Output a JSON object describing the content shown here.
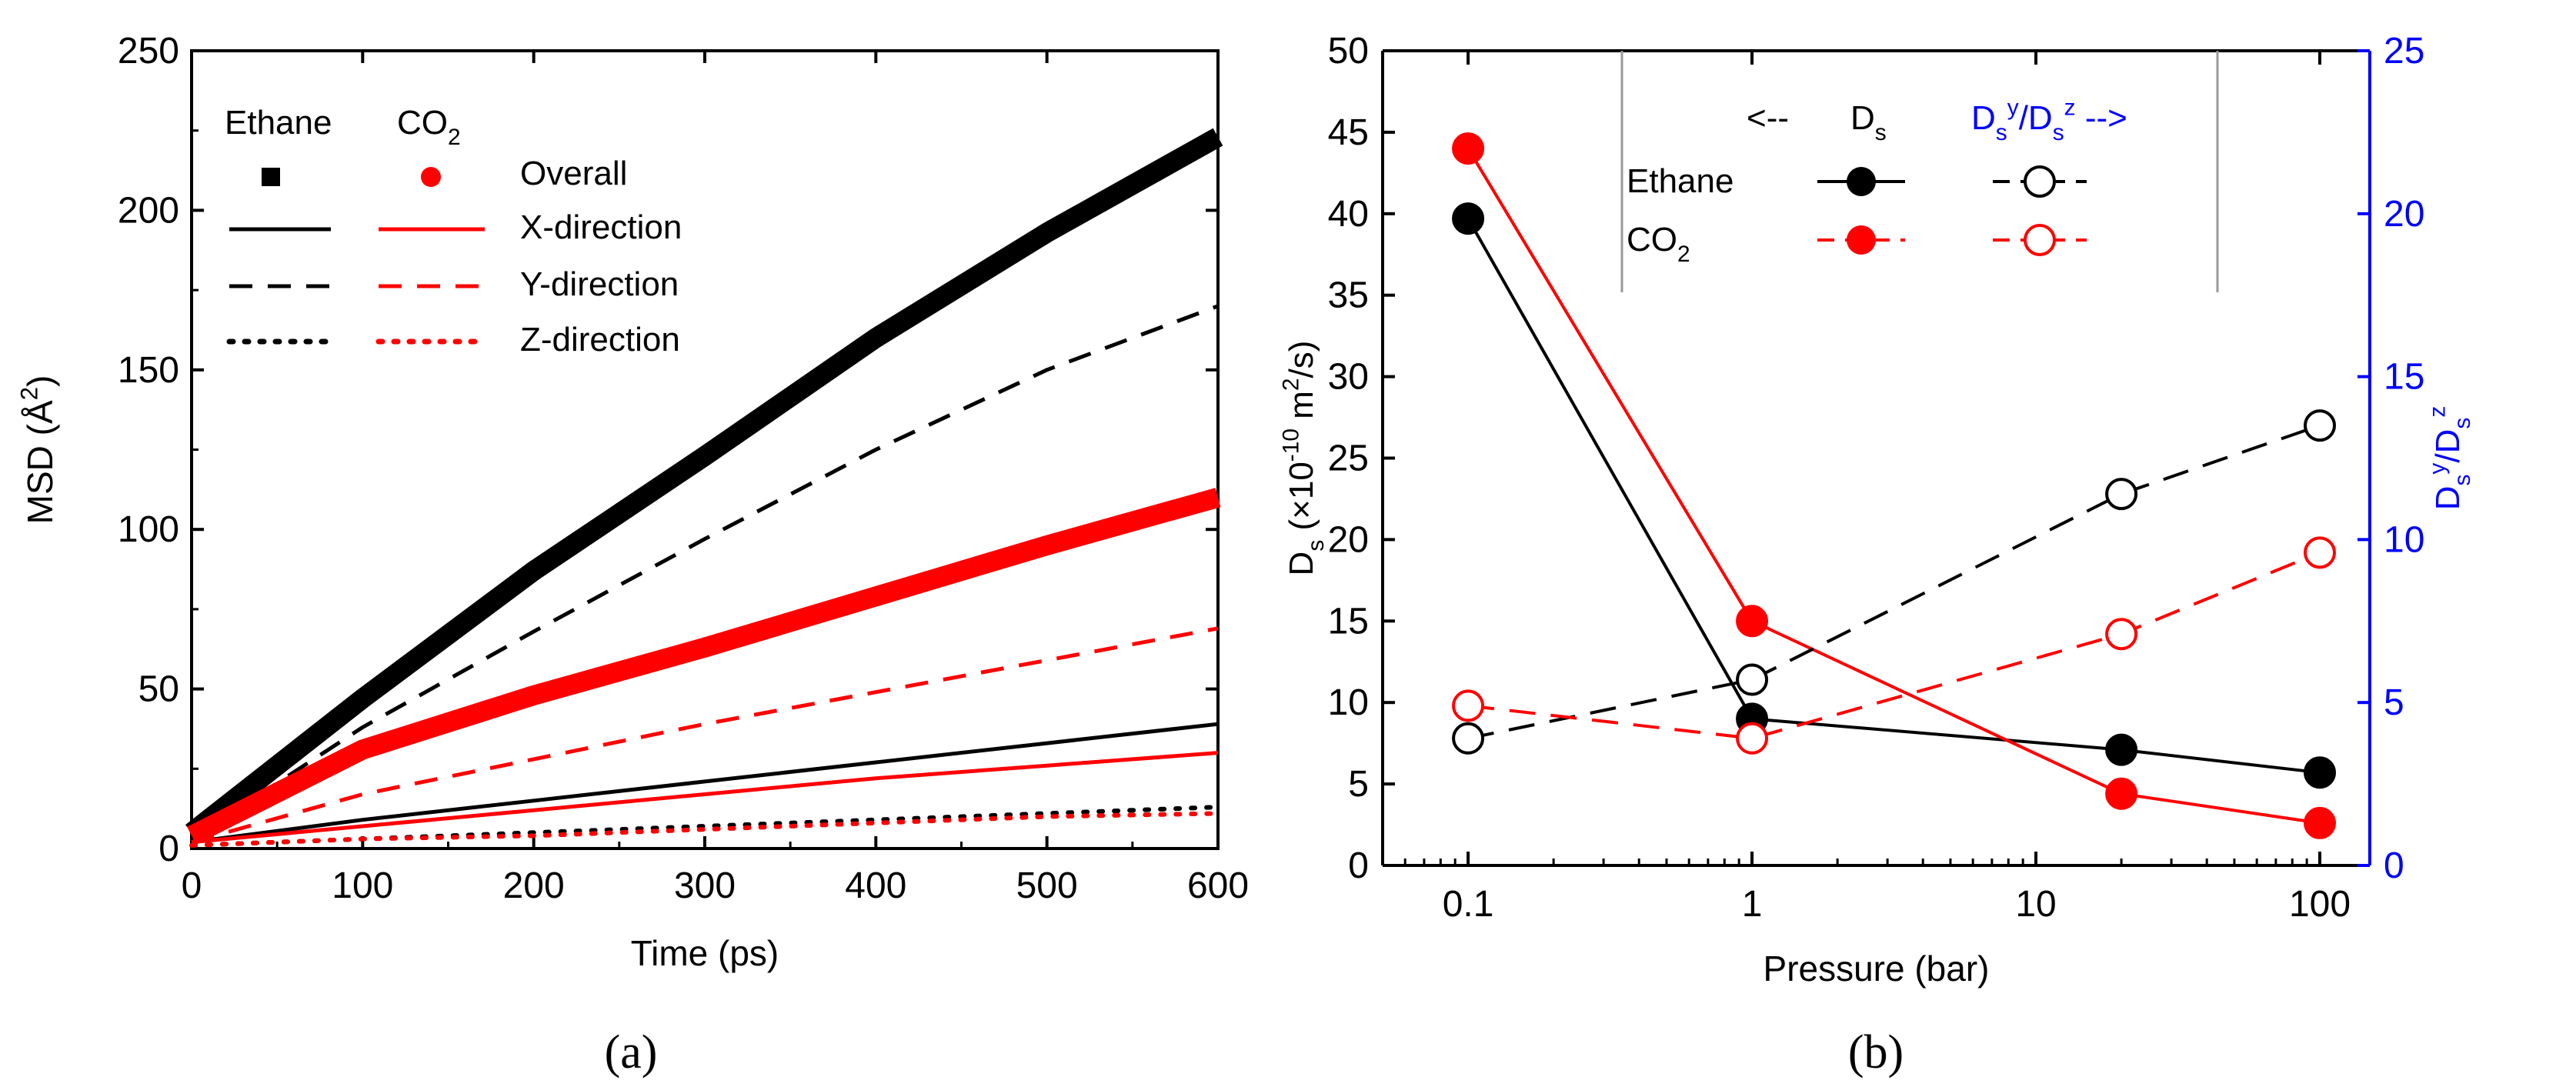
{
  "chart_data": [
    {
      "panel": "(a)",
      "type": "line",
      "xlabel": "Time (ps)",
      "ylabel": "MSD (Å²)",
      "ylabel_parts": [
        "MSD (Å",
        "2",
        ")"
      ],
      "xlim": [
        0,
        600
      ],
      "ylim": [
        0,
        250
      ],
      "xticks": [
        0,
        100,
        200,
        300,
        400,
        500,
        600
      ],
      "yticks": [
        0,
        50,
        100,
        150,
        200,
        250
      ],
      "legend": {
        "placement": "top-left",
        "col_ethane": "Ethane",
        "col_co2": "CO2",
        "col_co2_parts": [
          "CO",
          "2"
        ],
        "rows": [
          "Overall",
          "X-direction",
          "Y-direction",
          "Z-direction"
        ]
      },
      "series": [
        {
          "name": "Ethane Overall",
          "molecule": "Ethane",
          "component": "Overall",
          "color": "#000000",
          "style": "thick",
          "x": [
            0,
            100,
            200,
            300,
            400,
            500,
            600
          ],
          "y": [
            5,
            47,
            87,
            123,
            160,
            193,
            223
          ]
        },
        {
          "name": "Ethane X-direction",
          "molecule": "Ethane",
          "component": "X-direction",
          "color": "#000000",
          "style": "solid",
          "x": [
            0,
            100,
            200,
            300,
            400,
            500,
            600
          ],
          "y": [
            2,
            9,
            15,
            21,
            27,
            33,
            39
          ]
        },
        {
          "name": "Ethane Y-direction",
          "molecule": "Ethane",
          "component": "Y-direction",
          "color": "#000000",
          "style": "dash",
          "x": [
            0,
            100,
            200,
            300,
            400,
            500,
            600
          ],
          "y": [
            3,
            38,
            68,
            97,
            125,
            150,
            170
          ]
        },
        {
          "name": "Ethane Z-direction",
          "molecule": "Ethane",
          "component": "Z-direction",
          "color": "#000000",
          "style": "dot",
          "x": [
            0,
            100,
            200,
            300,
            400,
            500,
            600
          ],
          "y": [
            1,
            3,
            5,
            7,
            9,
            11,
            13
          ]
        },
        {
          "name": "CO2 Overall",
          "molecule": "CO2",
          "component": "Overall",
          "color": "#ff0000",
          "style": "thick",
          "x": [
            0,
            100,
            200,
            300,
            400,
            500,
            600
          ],
          "y": [
            4,
            31,
            48,
            63,
            79,
            95,
            110
          ]
        },
        {
          "name": "CO2 X-direction",
          "molecule": "CO2",
          "component": "X-direction",
          "color": "#ff0000",
          "style": "solid",
          "x": [
            0,
            100,
            200,
            300,
            400,
            500,
            600
          ],
          "y": [
            2,
            7,
            12,
            17,
            22,
            26,
            30
          ]
        },
        {
          "name": "CO2 Y-direction",
          "molecule": "CO2",
          "component": "Y-direction",
          "color": "#ff0000",
          "style": "dash",
          "x": [
            0,
            100,
            200,
            300,
            400,
            500,
            600
          ],
          "y": [
            2,
            17,
            28,
            39,
            49,
            59,
            69
          ]
        },
        {
          "name": "CO2 Z-direction",
          "molecule": "CO2",
          "component": "Z-direction",
          "color": "#ff0000",
          "style": "dot",
          "x": [
            0,
            100,
            200,
            300,
            400,
            500,
            600
          ],
          "y": [
            1,
            3,
            4,
            6,
            8,
            10,
            11
          ]
        }
      ]
    },
    {
      "panel": "(b)",
      "type": "line",
      "xscale": "log",
      "xlabel": "Pressure (bar)",
      "ylabel": "Ds (×10⁻¹⁰ m²/s)",
      "ylabel_parts": [
        "D",
        "s",
        " (×10",
        "-10",
        " m",
        "2",
        "/s)"
      ],
      "y2label": "Dsʸ/Dsᶻ",
      "y2label_parts": [
        "D",
        "s",
        "y",
        "/D",
        "s",
        "z"
      ],
      "xlim": [
        0.05,
        150
      ],
      "ylim": [
        0,
        50
      ],
      "y2lim": [
        0,
        25
      ],
      "xticks": [
        0.1,
        1,
        10,
        100
      ],
      "xtick_labels": [
        "0.1",
        "1",
        "10",
        "100"
      ],
      "yticks": [
        0,
        5,
        10,
        15,
        20,
        25,
        30,
        35,
        40,
        45,
        50
      ],
      "y2ticks": [
        0,
        5,
        10,
        15,
        20,
        25
      ],
      "y2color": "#0000ff",
      "legend": {
        "placement": "top-center",
        "left_arrow": "<--",
        "ds_label": "Ds",
        "ds_parts": [
          "D",
          "s"
        ],
        "ratio_label": "Dsʸ/Dsᶻ -->",
        "ratio_parts": [
          "D",
          "s",
          "y",
          "/D",
          "s",
          "z",
          " -->"
        ],
        "rows": [
          "Ethane",
          "CO2"
        ],
        "co2_parts": [
          "CO",
          "2"
        ]
      },
      "series": [
        {
          "name": "Ethane Ds",
          "axis": "left",
          "color": "#000000",
          "marker": "filled",
          "style": "solid",
          "x": [
            0.1,
            1,
            20,
            100
          ],
          "y": [
            39.7,
            9.0,
            7.1,
            5.7
          ]
        },
        {
          "name": "CO2 Ds",
          "axis": "left",
          "color": "#ff0000",
          "marker": "filled",
          "style": "solid",
          "x": [
            0.1,
            1,
            20,
            100
          ],
          "y": [
            44.0,
            15.0,
            4.4,
            2.6
          ]
        },
        {
          "name": "Ethane Dsy/Dsz",
          "axis": "right",
          "color": "#000000",
          "marker": "open",
          "style": "dash",
          "x": [
            0.1,
            1,
            20,
            100
          ],
          "y": [
            3.9,
            5.7,
            11.4,
            13.5
          ]
        },
        {
          "name": "CO2 Dsy/Dsz",
          "axis": "right",
          "color": "#ff0000",
          "marker": "open",
          "style": "dash",
          "x": [
            0.1,
            1,
            20,
            100
          ],
          "y": [
            4.9,
            3.9,
            7.1,
            9.6
          ]
        }
      ]
    }
  ]
}
